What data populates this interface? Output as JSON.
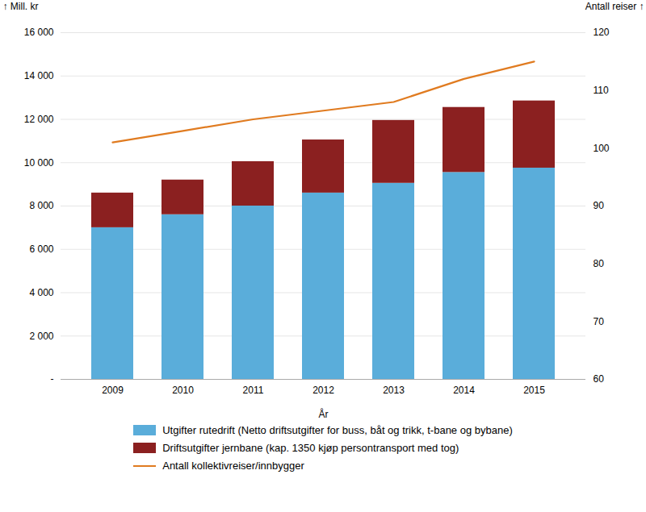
{
  "chart_data": {
    "type": "bar",
    "stacked": true,
    "grid": true,
    "legend": "bottom",
    "xlabel": "År",
    "ylabel": "Mill. kr",
    "y2label": "Antall reiser",
    "categories": [
      "2009",
      "2010",
      "2011",
      "2012",
      "2013",
      "2014",
      "2015"
    ],
    "series": [
      {
        "name": "Utgifter rutedrift (Netto driftsutgifter for buss, båt og trikk, t-bane og bybane)",
        "color": "#5aadda",
        "values": [
          7000,
          7600,
          8000,
          8600,
          9050,
          9550,
          9750
        ]
      },
      {
        "name": "Driftsutgifter jernbane (kap. 1350 kjøp persontransport med tog)",
        "color": "#8b2020",
        "values": [
          1600,
          1600,
          2050,
          2450,
          2900,
          3000,
          3100
        ]
      },
      {
        "name": "Antall kollektivreiser/innbygger",
        "type": "line",
        "axis": "y2",
        "color": "#e07b20",
        "values": [
          101,
          103,
          105,
          106.5,
          108,
          112,
          115
        ]
      }
    ],
    "ylim": [
      0,
      16000
    ],
    "yticks": [
      {
        "value": 0,
        "label": "-"
      },
      {
        "value": 2000,
        "label": "2 000"
      },
      {
        "value": 4000,
        "label": "4 000"
      },
      {
        "value": 6000,
        "label": "6 000"
      },
      {
        "value": 8000,
        "label": "8 000"
      },
      {
        "value": 10000,
        "label": "10 000"
      },
      {
        "value": 12000,
        "label": "12 000"
      },
      {
        "value": 14000,
        "label": "14 000"
      },
      {
        "value": 16000,
        "label": "16 000"
      }
    ],
    "y2lim": [
      60,
      120
    ],
    "y2ticks": [
      60,
      70,
      80,
      90,
      100,
      110,
      120
    ]
  }
}
